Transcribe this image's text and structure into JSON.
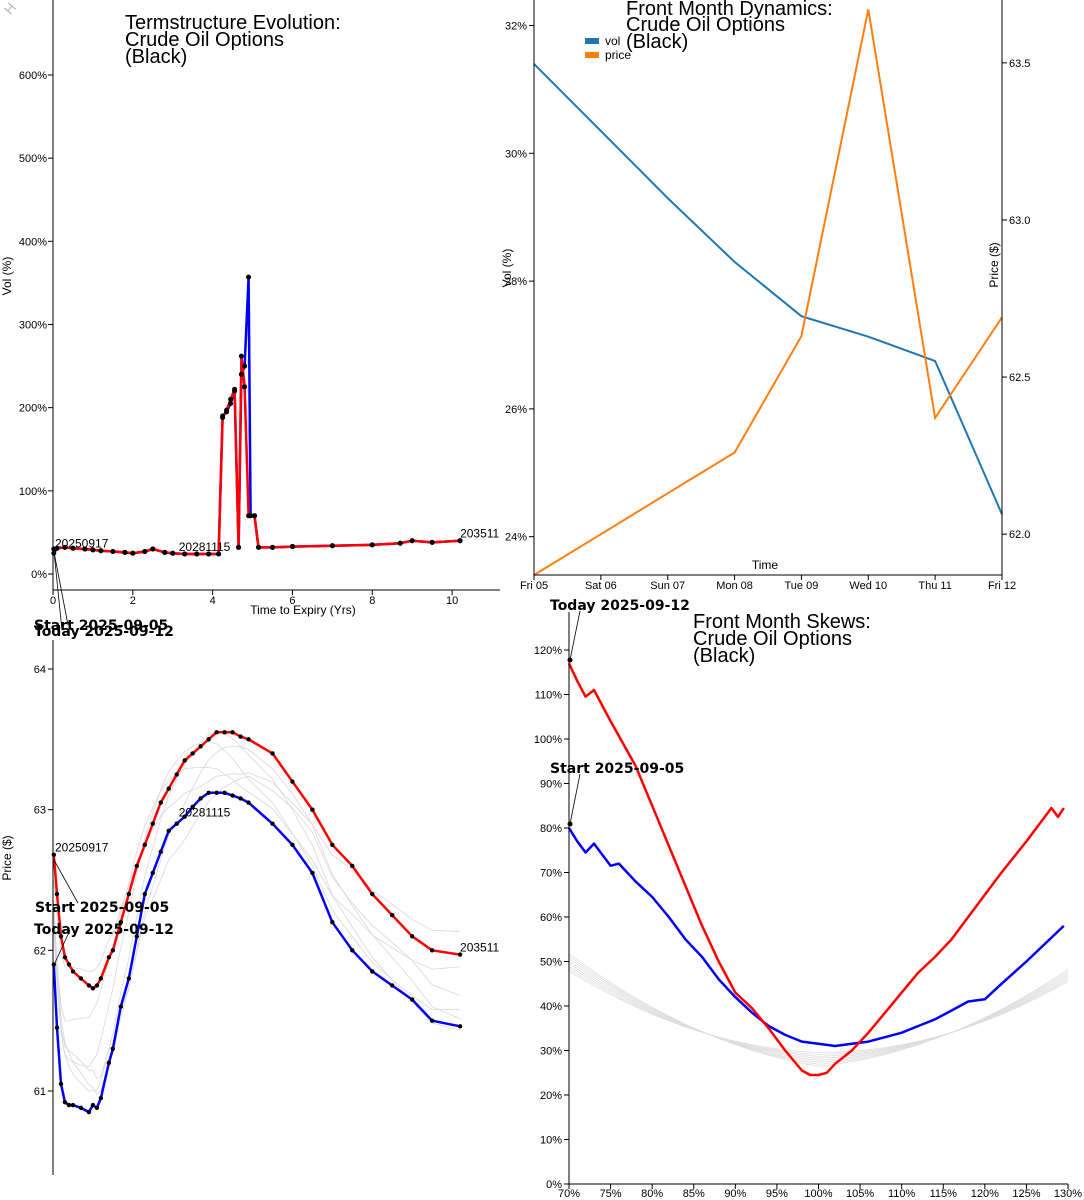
{
  "watermark": "H",
  "chart_data": [
    {
      "id": "termstructure",
      "type": "line",
      "title": [
        "Termstructure Evolution:",
        "Crude Oil Options",
        "(Black)"
      ],
      "xlabel": "Time to Expiry (Yrs)",
      "ylabel": "Vol (%)",
      "xlim": [
        0,
        11.2
      ],
      "ylim": [
        -5,
        660
      ],
      "xticks": [
        0,
        2,
        4,
        6,
        8,
        10
      ],
      "xtick_labels": [
        "0",
        "2",
        "4",
        "6",
        "8",
        "10"
      ],
      "yticks": [
        0,
        100,
        200,
        300,
        400,
        500,
        600
      ],
      "ytick_labels": [
        "0%",
        "100%",
        "200%",
        "300%",
        "400%",
        "500%",
        "600%"
      ],
      "series": [
        {
          "name": "start",
          "color": "#0000ff",
          "x": [
            0.02,
            0.1,
            0.3,
            0.5,
            0.8,
            1.0,
            1.2,
            1.5,
            1.8,
            2.0,
            2.3,
            2.5,
            2.8,
            3.0,
            3.3,
            3.6,
            3.9,
            4.15,
            4.25,
            4.35,
            4.45,
            4.55,
            4.65,
            4.72,
            4.8,
            4.9,
            4.95,
            5.05,
            5.15,
            5.5,
            6.0,
            7.0,
            8.0,
            8.7,
            9.0,
            9.5,
            10.2
          ],
          "values": [
            25,
            31,
            32,
            31,
            30,
            29,
            28,
            27,
            26,
            25,
            27,
            30,
            26,
            25,
            24,
            24,
            24,
            24,
            190,
            195,
            205,
            220,
            32,
            240,
            250,
            357,
            70,
            70,
            32,
            32,
            33,
            34,
            35,
            37,
            40,
            38,
            40
          ]
        },
        {
          "name": "today",
          "color": "#ff0000",
          "x": [
            0.02,
            0.1,
            0.3,
            0.5,
            0.8,
            1.0,
            1.2,
            1.5,
            1.8,
            2.0,
            2.3,
            2.5,
            2.8,
            3.0,
            3.3,
            3.6,
            3.9,
            4.15,
            4.25,
            4.35,
            4.45,
            4.55,
            4.65,
            4.72,
            4.8,
            4.9,
            4.95,
            5.05,
            5.15,
            5.5,
            6.0,
            7.0,
            8.0,
            8.7,
            9.0,
            9.5,
            10.2
          ],
          "values": [
            30,
            31,
            32,
            31,
            30,
            29,
            28,
            27,
            26,
            25,
            27,
            30,
            26,
            25,
            24,
            24,
            24,
            24,
            188,
            197,
            210,
            222,
            32,
            262,
            225,
            70,
            70,
            70,
            32,
            32,
            33,
            34,
            35,
            37,
            40,
            38,
            40
          ]
        }
      ],
      "contract_labels": [
        {
          "text": "20250917",
          "x": 0.05,
          "y": 28
        },
        {
          "text": "20281115",
          "x": 3.15,
          "y": 24
        },
        {
          "text": "203511",
          "x": 10.2,
          "y": 40
        }
      ],
      "callouts": [
        "Start 2025-09-05",
        "Today 2025-09-12"
      ]
    },
    {
      "id": "front-dynamics",
      "type": "line",
      "title": [
        "Front Month Dynamics:",
        "Crude Oil Options",
        "(Black)"
      ],
      "xlabel": "Time",
      "ylabel_left": "Vol (%)",
      "ylabel_right": "Price ($)",
      "categories": [
        "Fri 05",
        "Sat 06",
        "Sun 07",
        "Mon 08",
        "Tue 09",
        "Wed 10",
        "Thu 11",
        "Fri 12"
      ],
      "ylim_left": [
        23.4,
        32.4
      ],
      "ylim_right": [
        61.87,
        63.7
      ],
      "yticks_left": [
        24,
        26,
        28,
        30,
        32
      ],
      "yticks_left_labels": [
        "24%",
        "26%",
        "28%",
        "30%",
        "32%"
      ],
      "yticks_right": [
        62.0,
        62.5,
        63.0,
        63.5
      ],
      "yticks_right_labels": [
        "62.0",
        "62.5",
        "63.0",
        "63.5"
      ],
      "series": [
        {
          "name": "vol",
          "axis": "left",
          "color": "#1f77b4",
          "values": [
            31.4,
            30.35,
            29.3,
            28.3,
            27.45,
            27.13,
            26.75,
            24.35
          ]
        },
        {
          "name": "price",
          "axis": "right",
          "color": "#ff7f0e",
          "values": [
            61.87,
            62.0,
            62.13,
            62.26,
            62.63,
            63.67,
            62.37,
            62.69
          ]
        }
      ],
      "legend": [
        "vol",
        "price"
      ]
    },
    {
      "id": "futures-curve",
      "type": "line",
      "ylabel": "Price ($)",
      "ylim": [
        60.4,
        64.1
      ],
      "yticks": [
        61,
        62,
        63,
        64
      ],
      "ytick_labels": [
        "61",
        "62",
        "63",
        "64"
      ],
      "xlim": [
        0,
        10.7
      ],
      "series": [
        {
          "name": "start",
          "color": "#0000ff",
          "x": [
            0.02,
            0.1,
            0.2,
            0.3,
            0.4,
            0.5,
            0.7,
            0.9,
            1.0,
            1.1,
            1.2,
            1.4,
            1.5,
            1.7,
            1.9,
            2.1,
            2.3,
            2.5,
            2.7,
            2.9,
            3.1,
            3.3,
            3.5,
            3.7,
            3.9,
            4.1,
            4.3,
            4.5,
            4.7,
            4.9,
            5.5,
            6.0,
            6.5,
            7.0,
            7.5,
            8.0,
            8.5,
            9.0,
            9.5,
            10.2
          ],
          "values": [
            61.9,
            61.45,
            61.05,
            60.92,
            60.9,
            60.9,
            60.88,
            60.85,
            60.9,
            60.88,
            60.95,
            61.2,
            61.3,
            61.6,
            61.8,
            62.1,
            62.4,
            62.55,
            62.7,
            62.85,
            62.9,
            62.95,
            63.02,
            63.08,
            63.12,
            63.12,
            63.12,
            63.1,
            63.08,
            63.05,
            62.9,
            62.75,
            62.55,
            62.2,
            62.0,
            61.85,
            61.75,
            61.65,
            61.5,
            61.46
          ]
        },
        {
          "name": "today",
          "color": "#ff0000",
          "x": [
            0.02,
            0.1,
            0.2,
            0.3,
            0.4,
            0.5,
            0.7,
            0.9,
            1.0,
            1.1,
            1.2,
            1.4,
            1.5,
            1.7,
            1.9,
            2.1,
            2.3,
            2.5,
            2.7,
            2.9,
            3.1,
            3.3,
            3.5,
            3.7,
            3.9,
            4.1,
            4.3,
            4.5,
            4.7,
            4.9,
            5.5,
            6.0,
            6.5,
            7.0,
            7.5,
            8.0,
            8.5,
            9.0,
            9.5,
            10.2
          ],
          "values": [
            62.68,
            62.4,
            62.1,
            61.95,
            61.9,
            61.85,
            61.8,
            61.75,
            61.73,
            61.75,
            61.8,
            61.95,
            62.0,
            62.2,
            62.4,
            62.6,
            62.75,
            62.9,
            63.05,
            63.15,
            63.25,
            63.35,
            63.4,
            63.45,
            63.5,
            63.55,
            63.55,
            63.55,
            63.52,
            63.5,
            63.4,
            63.2,
            63.0,
            62.75,
            62.6,
            62.4,
            62.25,
            62.1,
            62.0,
            61.97
          ]
        }
      ],
      "contract_labels": [
        {
          "text": "20250917",
          "x": 0.05,
          "y": 62.68
        },
        {
          "text": "20281115",
          "x": 3.15,
          "y": 62.93
        },
        {
          "text": "203511",
          "x": 10.2,
          "y": 61.97
        }
      ],
      "callouts": [
        "Start 2025-09-05",
        "Today 2025-09-12"
      ]
    },
    {
      "id": "front-skews",
      "type": "line",
      "title": [
        "Front Month Skews:",
        "Crude Oil Options",
        "(Black)"
      ],
      "xlim": [
        70,
        130
      ],
      "ylim": [
        0,
        122
      ],
      "xticks": [
        70,
        75,
        80,
        85,
        90,
        95,
        100,
        105,
        110,
        115,
        120,
        125,
        130
      ],
      "xtick_labels": [
        "70%",
        "75%",
        "80%",
        "85%",
        "90%",
        "95%",
        "100%",
        "105%",
        "110%",
        "115%",
        "120%",
        "125%",
        "130%"
      ],
      "yticks": [
        0,
        10,
        20,
        30,
        40,
        50,
        60,
        70,
        80,
        90,
        100,
        110,
        120
      ],
      "ytick_labels": [
        "0%",
        "10%",
        "20%",
        "30%",
        "40%",
        "50%",
        "60%",
        "70%",
        "80%",
        "90%",
        "100%",
        "110%",
        "120%"
      ],
      "series": [
        {
          "name": "start",
          "color": "#0000ff",
          "x": [
            70,
            71,
            72,
            73,
            74,
            75,
            76,
            78,
            80,
            82,
            84,
            86,
            88,
            90,
            92,
            94,
            96,
            98,
            100,
            102,
            104,
            106,
            108,
            110,
            112,
            114,
            116,
            118,
            120,
            122,
            125,
            129.5
          ],
          "values": [
            80,
            77,
            74.5,
            76.5,
            74,
            71.5,
            72,
            68,
            64.5,
            60,
            55,
            51,
            46,
            42,
            38.5,
            35.5,
            33.5,
            32,
            31.5,
            31,
            31.5,
            32,
            33,
            34,
            35.5,
            37,
            39,
            41,
            41.5,
            45,
            50,
            58
          ]
        },
        {
          "name": "today",
          "color": "#ff0000",
          "x": [
            70,
            71,
            72,
            73,
            75,
            78,
            80,
            82,
            84,
            86,
            88,
            90,
            92,
            94,
            96,
            98,
            99,
            100,
            101,
            102,
            104,
            106,
            108,
            110,
            112,
            114,
            116,
            118,
            120,
            122,
            125,
            128,
            128.8,
            129.5
          ],
          "values": [
            117,
            113,
            109.5,
            111,
            104,
            94,
            85,
            76,
            67,
            58,
            50,
            43,
            39.5,
            35,
            30,
            25.5,
            24.5,
            24.5,
            25,
            27,
            30,
            34,
            38.5,
            43,
            47.5,
            51,
            55,
            60,
            65,
            70,
            77,
            84.5,
            82.5,
            84.5
          ]
        }
      ],
      "callouts": [
        "Today 2025-09-12",
        "Start 2025-09-05"
      ]
    }
  ]
}
